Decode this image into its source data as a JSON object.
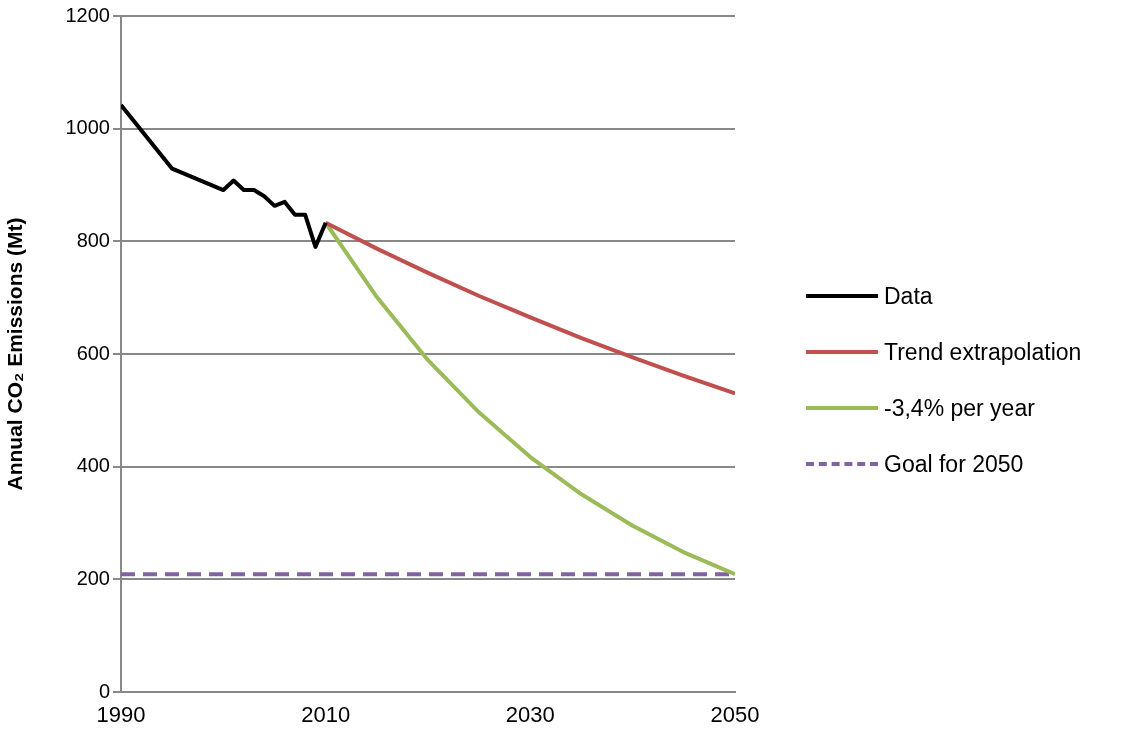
{
  "chart_data": {
    "type": "line",
    "ylabel": "Annual CO₂ Emissions (Mt)",
    "xlim": [
      1990,
      2050
    ],
    "xticks": [
      1990,
      2010,
      2030,
      2050
    ],
    "ylim": [
      0,
      1200
    ],
    "yticks": [
      0,
      200,
      400,
      600,
      800,
      1000,
      1200
    ],
    "grid": "y",
    "legend": "right",
    "marker": "none",
    "series": [
      {
        "name": "Data",
        "color": "#000000",
        "x": [
          1990,
          1995,
          2000,
          2001,
          2002,
          2003,
          2004,
          2005,
          2006,
          2007,
          2008,
          2009,
          2010
        ],
        "values": [
          1042,
          929,
          891,
          908,
          891,
          891,
          880,
          863,
          870,
          847,
          847,
          790,
          833
        ]
      },
      {
        "name": "Trend extrapolation",
        "color": "#c0504d",
        "x": [
          2010,
          2015,
          2020,
          2025,
          2030,
          2035,
          2040,
          2045,
          2050
        ],
        "values": [
          833,
          787,
          744,
          703,
          665,
          628,
          594,
          561,
          530
        ]
      },
      {
        "name": "-3,4% per year",
        "color": "#9bbb59",
        "x": [
          2010,
          2015,
          2020,
          2025,
          2030,
          2035,
          2040,
          2045,
          2050
        ],
        "values": [
          833,
          701,
          589,
          496,
          417,
          351,
          295,
          248,
          209
        ]
      },
      {
        "name": "Goal for 2050",
        "color": "#8064a2",
        "line_style": "dashed",
        "x": [
          1990,
          2050
        ],
        "values": [
          209,
          209
        ]
      }
    ]
  }
}
